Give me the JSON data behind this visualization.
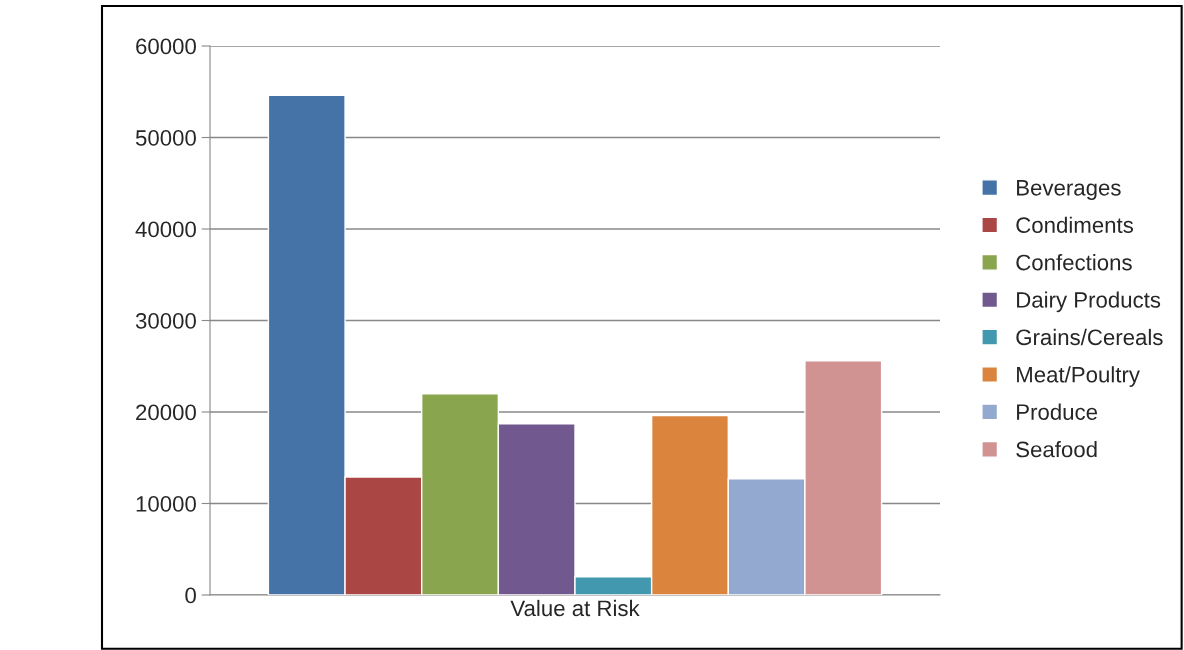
{
  "chart_data": {
    "type": "bar",
    "categories": [
      "Value at Risk"
    ],
    "series": [
      {
        "name": "Beverages",
        "color": "#4572a7",
        "values": [
          54600
        ]
      },
      {
        "name": "Condiments",
        "color": "#aa4643",
        "values": [
          12900
        ]
      },
      {
        "name": "Confections",
        "color": "#89a54e",
        "values": [
          22000
        ]
      },
      {
        "name": "Dairy Products",
        "color": "#71588f",
        "values": [
          18700
        ]
      },
      {
        "name": "Grains/Cereals",
        "color": "#4198af",
        "values": [
          2000
        ]
      },
      {
        "name": "Meat/Poultry",
        "color": "#db843d",
        "values": [
          19600
        ]
      },
      {
        "name": "Produce",
        "color": "#93a9cf",
        "values": [
          12700
        ]
      },
      {
        "name": "Seafood",
        "color": "#d19392",
        "values": [
          25600
        ]
      }
    ],
    "ylim": [
      0,
      60000
    ],
    "yticks": [
      0,
      10000,
      20000,
      30000,
      40000,
      50000,
      60000
    ],
    "grid": "y",
    "legend": "right"
  }
}
